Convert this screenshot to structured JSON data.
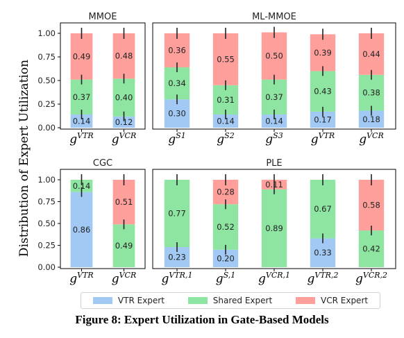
{
  "y_axis_label": "Distribution of Expert Utilization",
  "legend": [
    {
      "label": "VTR Expert",
      "color": "#a1c9f4"
    },
    {
      "label": "Shared Expert",
      "color": "#8de5a1"
    },
    {
      "label": "VCR Expert",
      "color": "#ff9f9b"
    }
  ],
  "caption": "Figure 8: Expert Utilization in Gate-Based Models",
  "chart_data": [
    {
      "type": "bar",
      "stacked": true,
      "title": "MMOE",
      "categories": [
        {
          "base": "g",
          "sup": "VTR"
        },
        {
          "base": "g",
          "sup": "VCR"
        }
      ],
      "series": [
        {
          "name": "VTR Expert",
          "values": [
            0.14,
            0.12
          ]
        },
        {
          "name": "Shared Expert",
          "values": [
            0.37,
            0.4
          ]
        },
        {
          "name": "VCR Expert",
          "values": [
            0.49,
            0.48
          ]
        }
      ],
      "ylim": [
        0,
        1
      ],
      "yticks": [
        "0.00",
        "0.25",
        "0.50",
        "0.75",
        "1.00"
      ],
      "error_bars": "black vertical error bars at each segment boundary"
    },
    {
      "type": "bar",
      "stacked": true,
      "title": "ML-MMOE",
      "categories": [
        {
          "base": "g",
          "sup": "S1"
        },
        {
          "base": "g",
          "sup": "S2"
        },
        {
          "base": "g",
          "sup": "S3"
        },
        {
          "base": "g",
          "sup": "VTR"
        },
        {
          "base": "g",
          "sup": "VCR"
        }
      ],
      "series": [
        {
          "name": "VTR Expert",
          "values": [
            0.3,
            0.14,
            0.14,
            0.17,
            0.18
          ]
        },
        {
          "name": "Shared Expert",
          "values": [
            0.34,
            0.31,
            0.37,
            0.43,
            0.38
          ]
        },
        {
          "name": "VCR Expert",
          "values": [
            0.36,
            0.55,
            0.5,
            0.39,
            0.44
          ]
        }
      ],
      "ylim": [
        0,
        1
      ]
    },
    {
      "type": "bar",
      "stacked": true,
      "title": "CGC",
      "categories": [
        {
          "base": "g",
          "sup": "VTR"
        },
        {
          "base": "g",
          "sup": "VCR"
        }
      ],
      "series": [
        {
          "name": "VTR Expert",
          "values": [
            0.86,
            0
          ]
        },
        {
          "name": "Shared Expert",
          "values": [
            0.14,
            0.49
          ]
        },
        {
          "name": "VCR Expert",
          "values": [
            0,
            0.51
          ]
        }
      ],
      "ylim": [
        0,
        1
      ],
      "yticks": [
        "0.00",
        "0.25",
        "0.50",
        "0.75",
        "1.00"
      ]
    },
    {
      "type": "bar",
      "stacked": true,
      "title": "PLE",
      "categories": [
        {
          "base": "g",
          "sup": "VTR,1"
        },
        {
          "base": "g",
          "sup": "S,1"
        },
        {
          "base": "g",
          "sup": "VCR,1"
        },
        {
          "base": "g",
          "sup": "VTR,2"
        },
        {
          "base": "g",
          "sup": "VCR,2"
        }
      ],
      "series": [
        {
          "name": "VTR Expert",
          "values": [
            0.23,
            0.2,
            0,
            0.33,
            0
          ]
        },
        {
          "name": "Shared Expert",
          "values": [
            0.77,
            0.52,
            0.89,
            0.67,
            0.42
          ]
        },
        {
          "name": "VCR Expert",
          "values": [
            0,
            0.28,
            0.11,
            0,
            0.58
          ]
        }
      ],
      "ylim": [
        0,
        1
      ]
    }
  ]
}
